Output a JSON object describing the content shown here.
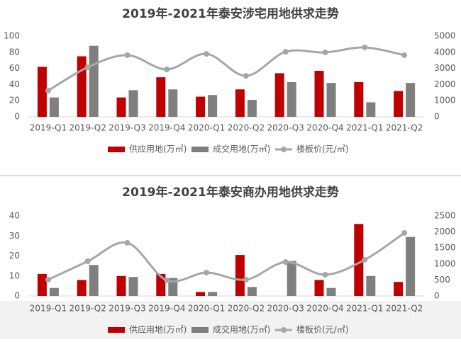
{
  "chart_data": [
    {
      "type": "combo",
      "title": "2019年-2021年泰安涉宅用地供求走势",
      "categories": [
        "2019-Q1",
        "2019-Q2",
        "2019-Q3",
        "2019-Q4",
        "2020-Q1",
        "2020-Q2",
        "2020-Q3",
        "2020-Q4",
        "2021-Q1",
        "2021-Q2"
      ],
      "series": [
        {
          "name": "供应用地(万㎡)",
          "color": "#c00000",
          "values": [
            62,
            75,
            24,
            49,
            25,
            34,
            54,
            57,
            43,
            32
          ]
        },
        {
          "name": "成交用地(万㎡)",
          "color": "#7f7f7f",
          "values": [
            24,
            88,
            33,
            34,
            27,
            21,
            43,
            42,
            18,
            42
          ]
        },
        {
          "name": "楼板价(元/㎡)",
          "color": "#a6a6a6",
          "axis": "y2",
          "values": [
            1620,
            3070,
            3820,
            2940,
            3900,
            2540,
            4030,
            3990,
            4300,
            3820
          ]
        }
      ],
      "ylim": [
        0,
        100
      ],
      "yticks": [
        0,
        20,
        40,
        60,
        80,
        100
      ],
      "y2lim": [
        0,
        5000
      ],
      "y2ticks": [
        0,
        1000,
        2000,
        3000,
        4000,
        5000
      ]
    },
    {
      "type": "combo",
      "title": "2019年-2021年泰安商办用地供求走势",
      "categories": [
        "2019-Q1",
        "2019-Q2",
        "2019-Q3",
        "2019-Q4",
        "2020-Q1",
        "2020-Q2",
        "2020-Q3",
        "2020-Q4",
        "2021-Q1",
        "2021-Q2"
      ],
      "series": [
        {
          "name": "供应用地(万㎡)",
          "color": "#c00000",
          "values": [
            11,
            8,
            10,
            11,
            2,
            20.5,
            0,
            8,
            36,
            7
          ]
        },
        {
          "name": "成交用地(万㎡)",
          "color": "#7f7f7f",
          "values": [
            4,
            15.5,
            9.5,
            9,
            2,
            4.5,
            17.5,
            4,
            10,
            29.5
          ]
        },
        {
          "name": "楼板价(元/㎡)",
          "color": "#a6a6a6",
          "axis": "y2",
          "values": [
            510,
            1085,
            1660,
            490,
            730,
            510,
            1060,
            665,
            1130,
            1970
          ]
        }
      ],
      "ylim": [
        0,
        40
      ],
      "yticks": [
        0,
        10,
        20,
        30,
        40
      ],
      "y2lim": [
        0,
        2500
      ],
      "y2ticks": [
        0,
        500,
        1000,
        1500,
        2000,
        2500
      ]
    }
  ]
}
